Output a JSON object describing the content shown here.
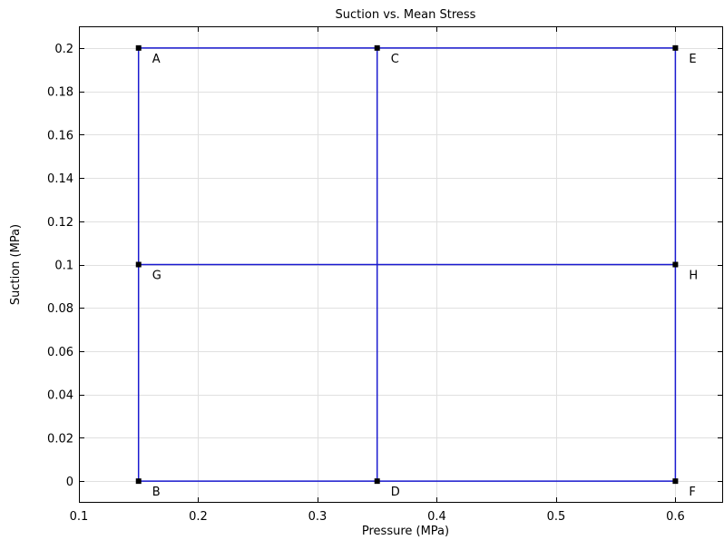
{
  "chart_data": {
    "type": "line",
    "title": "Suction vs. Mean Stress",
    "xlabel": "Pressure (MPa)",
    "ylabel": "Suction (MPa)",
    "xlim": [
      0.1,
      0.64
    ],
    "ylim": [
      -0.01,
      0.21
    ],
    "grid": true,
    "line_color": "#1a1ad0",
    "marker_color": "#000000",
    "x_ticks": [
      0.1,
      0.2,
      0.3,
      0.4,
      0.5,
      0.6
    ],
    "x_tick_labels": [
      "0.1",
      "0.2",
      "0.3",
      "0.4",
      "0.5",
      "0.6"
    ],
    "y_ticks": [
      0,
      0.02,
      0.04,
      0.06,
      0.08,
      0.1,
      0.12,
      0.14,
      0.16,
      0.18,
      0.2
    ],
    "y_tick_labels": [
      "0",
      "0.02",
      "0.04",
      "0.06",
      "0.08",
      "0.1",
      "0.12",
      "0.14",
      "0.16",
      "0.18",
      "0.2"
    ],
    "points": [
      {
        "label": "A",
        "x": 0.15,
        "y": 0.2
      },
      {
        "label": "B",
        "x": 0.15,
        "y": 0.0
      },
      {
        "label": "C",
        "x": 0.35,
        "y": 0.2
      },
      {
        "label": "D",
        "x": 0.35,
        "y": 0.0
      },
      {
        "label": "E",
        "x": 0.6,
        "y": 0.2
      },
      {
        "label": "F",
        "x": 0.6,
        "y": 0.0
      },
      {
        "label": "G",
        "x": 0.15,
        "y": 0.1
      },
      {
        "label": "H",
        "x": 0.6,
        "y": 0.1
      }
    ],
    "series": [
      {
        "x": [
          0.15,
          0.15
        ],
        "y": [
          0.2,
          0.0
        ]
      },
      {
        "x": [
          0.35,
          0.35
        ],
        "y": [
          0.2,
          0.0
        ]
      },
      {
        "x": [
          0.6,
          0.6
        ],
        "y": [
          0.2,
          0.0
        ]
      },
      {
        "x": [
          0.15,
          0.6
        ],
        "y": [
          0.2,
          0.2
        ]
      },
      {
        "x": [
          0.15,
          0.6
        ],
        "y": [
          0.0,
          0.0
        ]
      },
      {
        "x": [
          0.15,
          0.6
        ],
        "y": [
          0.1,
          0.1
        ]
      }
    ]
  }
}
